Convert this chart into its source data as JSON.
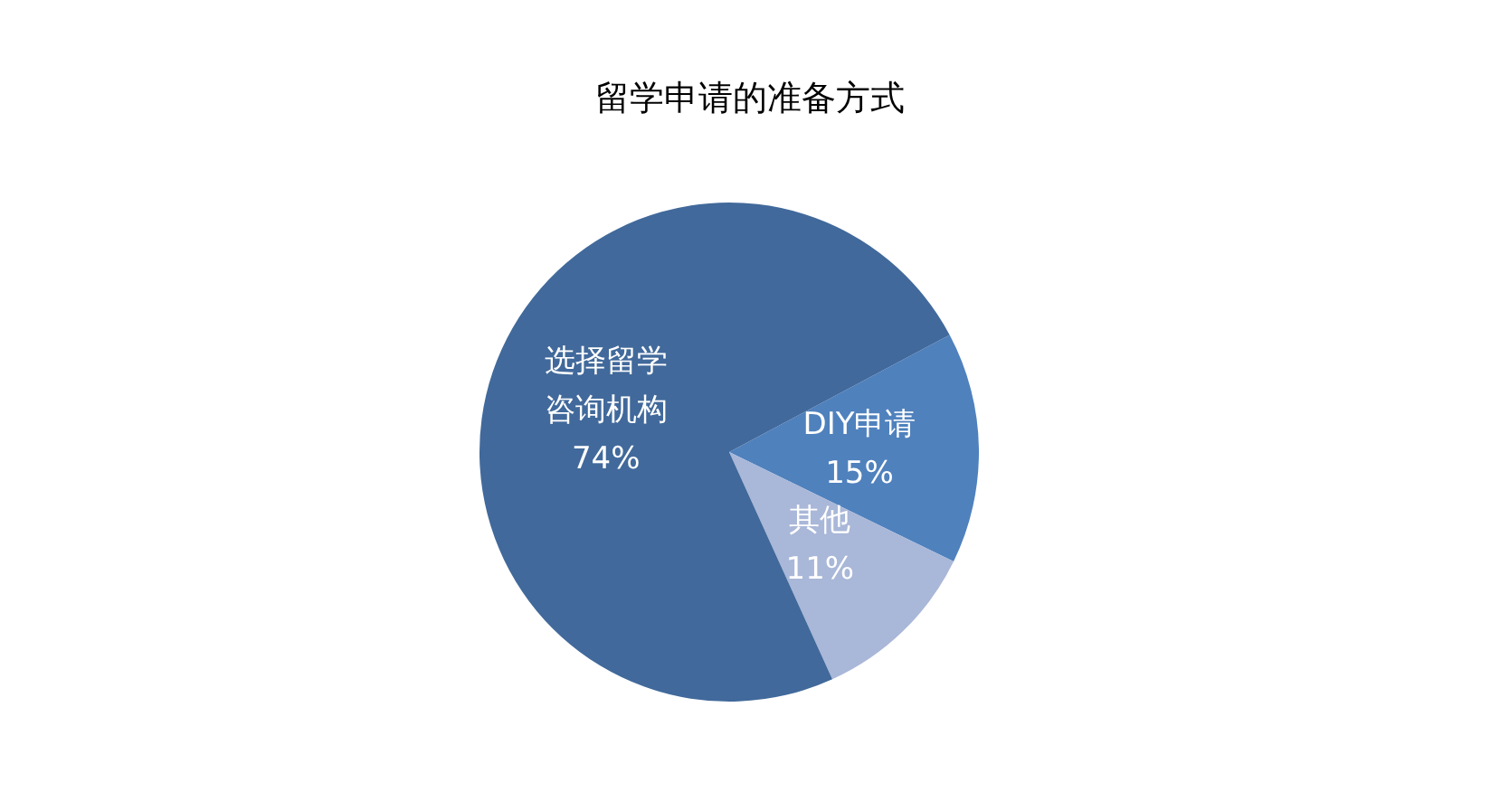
{
  "chart_data": {
    "type": "pie",
    "title": "留学申请的准备方式",
    "categories": [
      "DIY申请",
      "其他",
      "选择留学咨询机构"
    ],
    "values": [
      15,
      11,
      74
    ],
    "value_labels": [
      "15%",
      "11%",
      "74%"
    ],
    "colors": [
      "#4f81bd",
      "#a9b7d8",
      "#41699b"
    ]
  }
}
